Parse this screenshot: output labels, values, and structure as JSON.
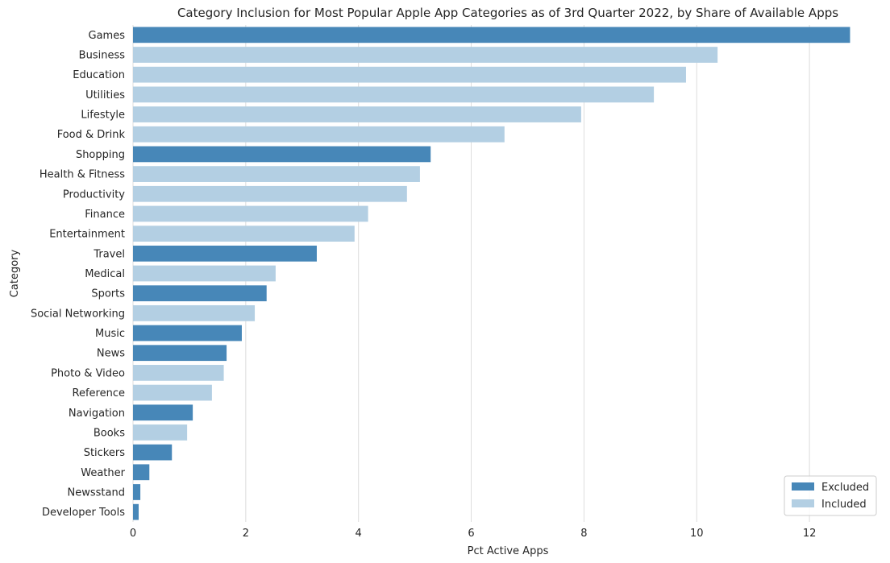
{
  "chart_data": {
    "type": "bar",
    "orientation": "horizontal",
    "title": "Category Inclusion for Most Popular Apple App Categories as of 3rd Quarter 2022, by Share of Available Apps",
    "xlabel": "Pct Active Apps",
    "ylabel": "Category",
    "xlim": [
      0,
      13.3
    ],
    "xticks": [
      0,
      2,
      4,
      6,
      8,
      10,
      12
    ],
    "grid": "vertical",
    "legend_position": "bottom-right",
    "legend": [
      {
        "label": "Excluded",
        "color": "#4787b8"
      },
      {
        "label": "Included",
        "color": "#b3cfe3"
      }
    ],
    "categories": [
      "Games",
      "Business",
      "Education",
      "Utilities",
      "Lifestyle",
      "Food & Drink",
      "Shopping",
      "Health & Fitness",
      "Productivity",
      "Finance",
      "Entertainment",
      "Travel",
      "Medical",
      "Sports",
      "Social Networking",
      "Music",
      "News",
      "Photo & Video",
      "Reference",
      "Navigation",
      "Books",
      "Stickers",
      "Weather",
      "Newsstand",
      "Developer Tools"
    ],
    "values": [
      12.72,
      10.37,
      9.81,
      9.24,
      7.95,
      6.59,
      5.28,
      5.09,
      4.86,
      4.17,
      3.93,
      3.26,
      2.53,
      2.37,
      2.16,
      1.93,
      1.66,
      1.61,
      1.4,
      1.06,
      0.96,
      0.69,
      0.29,
      0.13,
      0.1
    ],
    "groups": [
      "Excluded",
      "Included",
      "Included",
      "Included",
      "Included",
      "Included",
      "Excluded",
      "Included",
      "Included",
      "Included",
      "Included",
      "Excluded",
      "Included",
      "Excluded",
      "Included",
      "Excluded",
      "Excluded",
      "Included",
      "Included",
      "Excluded",
      "Included",
      "Excluded",
      "Excluded",
      "Excluded",
      "Excluded"
    ]
  }
}
